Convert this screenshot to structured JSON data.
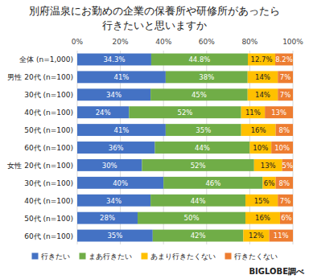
{
  "chart_data": {
    "type": "bar",
    "orientation": "horizontal",
    "stacked": true,
    "data_labels": true,
    "grid": true,
    "legend": "bottom",
    "title": "別府温泉にお勤めの企業の保養所や研修所があったら\n行きたいと思いますか",
    "annotations": [
      "BIGLOBE調べ"
    ],
    "categories": [
      "全体 (n=1,000)",
      "男性 20代 (n=100)",
      "30代 (n=100)",
      "40代 (n=100)",
      "50代 (n=100)",
      "60代 (n=100)",
      "女性 20代 (n=100)",
      "30代 (n=100)",
      "40代 (n=100)",
      "50代 (n=100)",
      "60代 (n=100)"
    ],
    "xlim": [
      0,
      100
    ],
    "xticks": [
      {
        "value": 0,
        "label": "0%"
      },
      {
        "value": 20,
        "label": "20%"
      },
      {
        "value": 40,
        "label": "40%"
      },
      {
        "value": 60,
        "label": "60%"
      },
      {
        "value": 80,
        "label": "80%"
      },
      {
        "value": 100,
        "label": "100%"
      }
    ],
    "series": [
      {
        "name": "行きたい",
        "color": "#4472c4",
        "values": [
          34.3,
          41,
          34,
          24,
          41,
          36,
          30,
          40,
          34,
          28,
          35
        ],
        "value_labels": [
          "34.3%",
          "41%",
          "34%",
          "24%",
          "41%",
          "36%",
          "30%",
          "40%",
          "34%",
          "28%",
          "35%"
        ]
      },
      {
        "name": "まあ行きたい",
        "color": "#70ad47",
        "values": [
          44.8,
          38,
          45,
          52,
          35,
          44,
          52,
          46,
          44,
          50,
          42
        ],
        "value_labels": [
          "44.8%",
          "38%",
          "45%",
          "52%",
          "35%",
          "44%",
          "52%",
          "46%",
          "44%",
          "50%",
          "42%"
        ]
      },
      {
        "name": "あまり行きたくない",
        "color": "#ffc000",
        "values": [
          12.7,
          14,
          14,
          11,
          16,
          10,
          13,
          6,
          15,
          16,
          12
        ],
        "value_labels": [
          "12.7%",
          "14%",
          "14%",
          "11%",
          "16%",
          "10%",
          "13%",
          "6%",
          "15%",
          "16%",
          "12%"
        ]
      },
      {
        "name": "行きたくない",
        "color": "#ed7d31",
        "values": [
          8.2,
          7,
          7,
          13,
          8,
          10,
          5,
          8,
          7,
          6,
          11
        ],
        "value_labels": [
          "8.2%",
          "7%",
          "7%",
          "13%",
          "8%",
          "10%",
          "5%",
          "8%",
          "7%",
          "6%",
          "11%"
        ]
      }
    ]
  }
}
